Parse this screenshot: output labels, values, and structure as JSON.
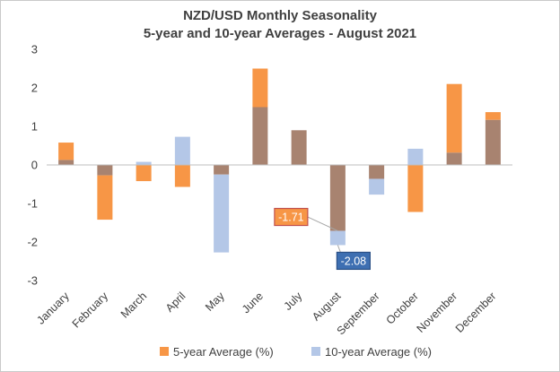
{
  "chart_data": {
    "type": "bar",
    "title": "NZD/USD Monthly Seasonality",
    "subtitle": "5-year and 10-year Averages - August 2021",
    "categories": [
      "January",
      "February",
      "March",
      "April",
      "May",
      "June",
      "July",
      "August",
      "September",
      "October",
      "November",
      "December"
    ],
    "series": [
      {
        "name": "5-year Average (%)",
        "color": "#f79646",
        "values": [
          0.58,
          -1.42,
          -0.42,
          -0.57,
          -0.25,
          2.5,
          0.9,
          -1.71,
          -0.36,
          -1.22,
          2.1,
          1.37
        ]
      },
      {
        "name": "10-year Average (%)",
        "color": "#b4c7e7",
        "values": [
          0.13,
          -0.27,
          0.08,
          0.73,
          -2.27,
          1.5,
          0.9,
          -2.08,
          -0.77,
          0.42,
          0.32,
          1.17
        ]
      }
    ],
    "overlap_color": "#a88370",
    "ylim": [
      -3,
      3
    ],
    "yticks": [
      "3",
      "2",
      "1",
      "0",
      "-1",
      "-2",
      "-3"
    ],
    "annotations": [
      {
        "category": "August",
        "series": "5-year Average (%)",
        "text": "-1.71",
        "fill": "#f79646",
        "border": "#c0504d"
      },
      {
        "category": "August",
        "series": "10-year Average (%)",
        "text": "-2.08",
        "fill": "#3e6fb2",
        "border": "#2a4f86"
      }
    ],
    "legend_position": "bottom",
    "grid": false
  }
}
